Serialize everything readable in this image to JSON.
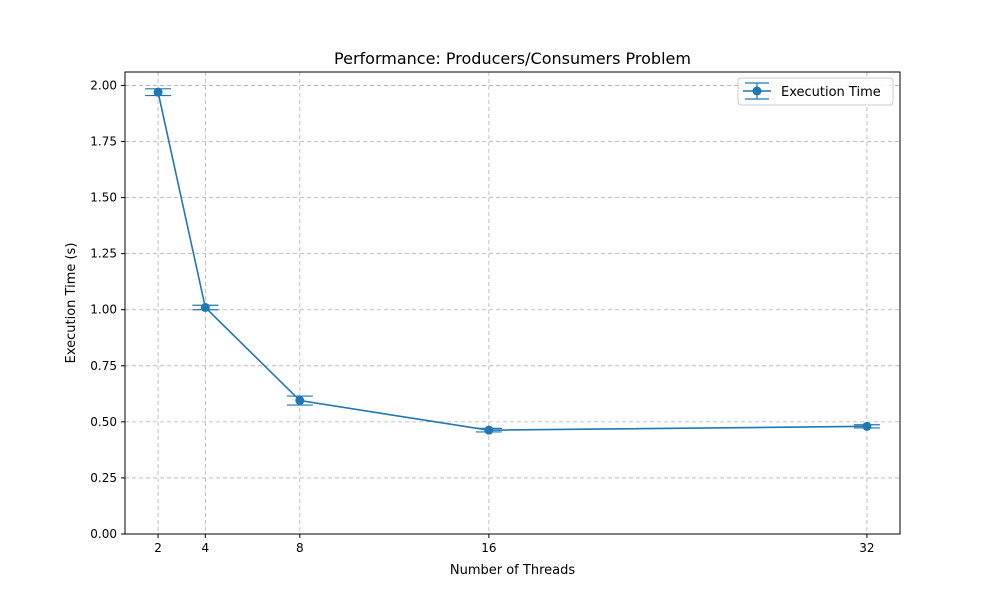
{
  "chart_data": {
    "type": "line",
    "title": "Performance: Producers/Consumers Problem",
    "xlabel": "Number of Threads",
    "ylabel": "Execution Time (s)",
    "x": [
      2,
      4,
      8,
      16,
      32
    ],
    "xlim": [
      0.6,
      33.4
    ],
    "ylim": [
      0,
      2.06
    ],
    "xticks": [
      2,
      4,
      8,
      16,
      32
    ],
    "yticks": [
      0.0,
      0.25,
      0.5,
      0.75,
      1.0,
      1.25,
      1.5,
      1.75,
      2.0
    ],
    "ytick_labels": [
      "0.00",
      "0.25",
      "0.50",
      "0.75",
      "1.00",
      "1.25",
      "1.50",
      "1.75",
      "2.00"
    ],
    "grid": true,
    "legend_position": "top-right",
    "series": [
      {
        "name": "Execution Time",
        "color": "#1f77b4",
        "values": [
          1.97,
          1.01,
          0.595,
          0.463,
          0.48
        ],
        "errors": [
          0.015,
          0.01,
          0.02,
          0.008,
          0.007
        ]
      }
    ]
  }
}
